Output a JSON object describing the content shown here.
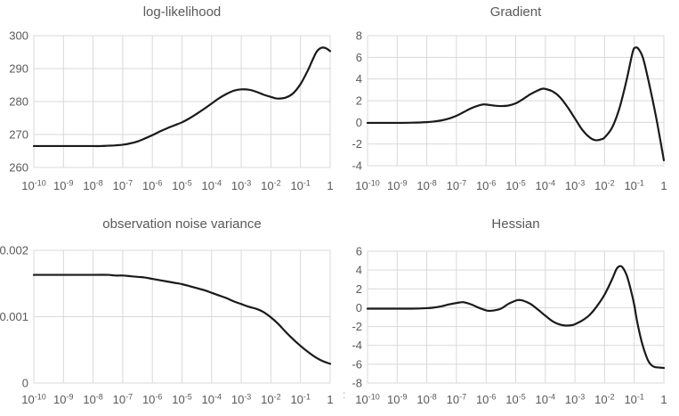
{
  "stray_mark": ":",
  "colors": {
    "curve": "#1a1a1a",
    "grid": "#d9d9d9",
    "axis_border": "#d9d9d9",
    "text": "#595959",
    "background": "#ffffff"
  },
  "chart_data": [
    {
      "id": "log-likelihood",
      "type": "line",
      "title": "log-likelihood",
      "x_scale": "log10",
      "xlabel": "",
      "ylabel": "",
      "xlim_log10": [
        -10,
        0
      ],
      "x_tick_exponents": [
        -10,
        -9,
        -8,
        -7,
        -6,
        -5,
        -4,
        -3,
        -2,
        -1,
        0
      ],
      "x_tick_labels": [
        "10^-10",
        "10^-9",
        "10^-8",
        "10^-7",
        "10^-6",
        "10^-5",
        "10^-4",
        "10^-3",
        "10^-2",
        "10^-1",
        "1"
      ],
      "ylim": [
        260,
        300
      ],
      "y_ticks": [
        "260",
        "270",
        "280",
        "290",
        "300"
      ],
      "grid": true,
      "legend": false,
      "x_log10": [
        -10,
        -9.5,
        -9,
        -8.5,
        -8,
        -7.75,
        -7.5,
        -7.25,
        -7,
        -6.75,
        -6.5,
        -6.25,
        -6,
        -5.75,
        -5.5,
        -5.25,
        -5,
        -4.75,
        -4.5,
        -4.25,
        -4,
        -3.75,
        -3.5,
        -3.25,
        -3,
        -2.75,
        -2.5,
        -2.25,
        -2,
        -1.85,
        -1.75,
        -1.5,
        -1.25,
        -1,
        -0.75,
        -0.6,
        -0.45,
        -0.3,
        -0.15,
        0
      ],
      "y": [
        266.5,
        266.5,
        266.5,
        266.5,
        266.5,
        266.5,
        266.6,
        266.7,
        266.9,
        267.3,
        267.9,
        268.8,
        269.8,
        270.9,
        271.9,
        272.8,
        273.7,
        274.9,
        276.3,
        277.8,
        279.4,
        281.0,
        282.3,
        283.3,
        283.7,
        283.6,
        283.0,
        282.1,
        281.4,
        281.0,
        280.9,
        281.2,
        282.5,
        285.3,
        289.5,
        292.5,
        295.2,
        296.3,
        296.2,
        295.3
      ]
    },
    {
      "id": "gradient",
      "type": "line",
      "title": "Gradient",
      "x_scale": "log10",
      "xlabel": "",
      "ylabel": "",
      "xlim_log10": [
        -10,
        0
      ],
      "x_tick_exponents": [
        -10,
        -9,
        -8,
        -7,
        -6,
        -5,
        -4,
        -3,
        -2,
        -1,
        0
      ],
      "x_tick_labels": [
        "10^-10",
        "10^-9",
        "10^-8",
        "10^-7",
        "10^-6",
        "10^-5",
        "10^-4",
        "10^-3",
        "10^-2",
        "10^-1",
        "1"
      ],
      "ylim": [
        -4,
        8
      ],
      "y_ticks": [
        "-4",
        "-2",
        "0",
        "2",
        "4",
        "6",
        "8"
      ],
      "grid": true,
      "legend": false,
      "x_log10": [
        -10,
        -9.5,
        -9,
        -8.5,
        -8,
        -7.75,
        -7.5,
        -7.25,
        -7,
        -6.75,
        -6.5,
        -6.25,
        -6.1,
        -6,
        -5.75,
        -5.5,
        -5.25,
        -5,
        -4.75,
        -4.5,
        -4.25,
        -4.1,
        -4,
        -3.75,
        -3.5,
        -3.25,
        -3,
        -2.75,
        -2.5,
        -2.3,
        -2.1,
        -2,
        -1.75,
        -1.5,
        -1.25,
        -1.05,
        -0.95,
        -0.85,
        -0.7,
        -0.5,
        -0.25,
        0
      ],
      "y": [
        -0.05,
        -0.05,
        -0.05,
        -0.03,
        0.02,
        0.08,
        0.18,
        0.35,
        0.6,
        0.95,
        1.3,
        1.55,
        1.65,
        1.64,
        1.55,
        1.5,
        1.55,
        1.75,
        2.15,
        2.6,
        2.95,
        3.1,
        3.08,
        2.85,
        2.3,
        1.4,
        0.35,
        -0.7,
        -1.4,
        -1.65,
        -1.55,
        -1.4,
        -0.5,
        1.3,
        4.0,
        6.5,
        6.9,
        6.75,
        5.9,
        3.6,
        0.3,
        -3.5
      ]
    },
    {
      "id": "observation-noise-variance",
      "type": "line",
      "title": "observation noise variance",
      "x_scale": "log10",
      "xlabel": "",
      "ylabel": "",
      "xlim_log10": [
        -10,
        0
      ],
      "x_tick_exponents": [
        -10,
        -9,
        -8,
        -7,
        -6,
        -5,
        -4,
        -3,
        -2,
        -1,
        0
      ],
      "x_tick_labels": [
        "10^-10",
        "10^-9",
        "10^-8",
        "10^-7",
        "10^-6",
        "10^-5",
        "10^-4",
        "10^-3",
        "10^-2",
        "10^-1",
        "1"
      ],
      "ylim": [
        0,
        0.002
      ],
      "y_ticks": [
        "0",
        "0.001",
        "0.002"
      ],
      "grid": true,
      "legend": false,
      "x_log10": [
        -10,
        -9,
        -8,
        -7.5,
        -7.25,
        -7,
        -6.75,
        -6.5,
        -6.25,
        -6,
        -5.75,
        -5.5,
        -5.25,
        -5,
        -4.75,
        -4.5,
        -4.25,
        -4,
        -3.75,
        -3.5,
        -3.25,
        -3,
        -2.75,
        -2.5,
        -2.25,
        -2,
        -1.75,
        -1.5,
        -1.25,
        -1,
        -0.75,
        -0.5,
        -0.25,
        0
      ],
      "y": [
        0.00163,
        0.00163,
        0.00163,
        0.00163,
        0.00162,
        0.00162,
        0.00161,
        0.0016,
        0.00159,
        0.00157,
        0.00155,
        0.00153,
        0.00151,
        0.00149,
        0.00146,
        0.00143,
        0.0014,
        0.00136,
        0.00132,
        0.00128,
        0.00123,
        0.00119,
        0.00115,
        0.00112,
        0.00107,
        0.00099,
        0.00089,
        0.00077,
        0.00066,
        0.00056,
        0.00047,
        0.00039,
        0.00033,
        0.00029
      ]
    },
    {
      "id": "hessian",
      "type": "line",
      "title": "Hessian",
      "x_scale": "log10",
      "xlabel": "",
      "ylabel": "",
      "xlim_log10": [
        -10,
        0
      ],
      "x_tick_exponents": [
        -10,
        -9,
        -8,
        -7,
        -6,
        -5,
        -4,
        -3,
        -2,
        -1,
        0
      ],
      "x_tick_labels": [
        "10^-10",
        "10^-9",
        "10^-8",
        "10^-7",
        "10^-6",
        "10^-5",
        "10^-4",
        "10^-3",
        "10^-2",
        "10^-1",
        "1"
      ],
      "ylim": [
        -8,
        6
      ],
      "y_ticks": [
        "-8",
        "-6",
        "-4",
        "-2",
        "0",
        "2",
        "4",
        "6"
      ],
      "grid": true,
      "legend": false,
      "x_log10": [
        -10,
        -9,
        -8.5,
        -8,
        -7.75,
        -7.5,
        -7.25,
        -7,
        -6.9,
        -6.75,
        -6.5,
        -6.25,
        -6,
        -5.9,
        -5.75,
        -5.5,
        -5.25,
        -5,
        -4.9,
        -4.75,
        -4.5,
        -4.25,
        -4,
        -3.75,
        -3.5,
        -3.3,
        -3.1,
        -3,
        -2.75,
        -2.5,
        -2.25,
        -2,
        -1.75,
        -1.6,
        -1.5,
        -1.4,
        -1.25,
        -1.1,
        -1,
        -0.9,
        -0.75,
        -0.6,
        -0.5,
        -0.4,
        -0.3,
        -0.15,
        0
      ],
      "y": [
        -0.1,
        -0.1,
        -0.1,
        -0.05,
        0.02,
        0.15,
        0.35,
        0.5,
        0.55,
        0.58,
        0.35,
        0.0,
        -0.28,
        -0.33,
        -0.3,
        -0.1,
        0.4,
        0.75,
        0.82,
        0.75,
        0.4,
        -0.2,
        -0.85,
        -1.45,
        -1.8,
        -1.9,
        -1.85,
        -1.75,
        -1.35,
        -0.75,
        0.2,
        1.4,
        3.0,
        4.1,
        4.4,
        4.3,
        3.4,
        1.7,
        0.3,
        -1.5,
        -3.6,
        -5.1,
        -5.8,
        -6.15,
        -6.3,
        -6.35,
        -6.4
      ]
    }
  ]
}
